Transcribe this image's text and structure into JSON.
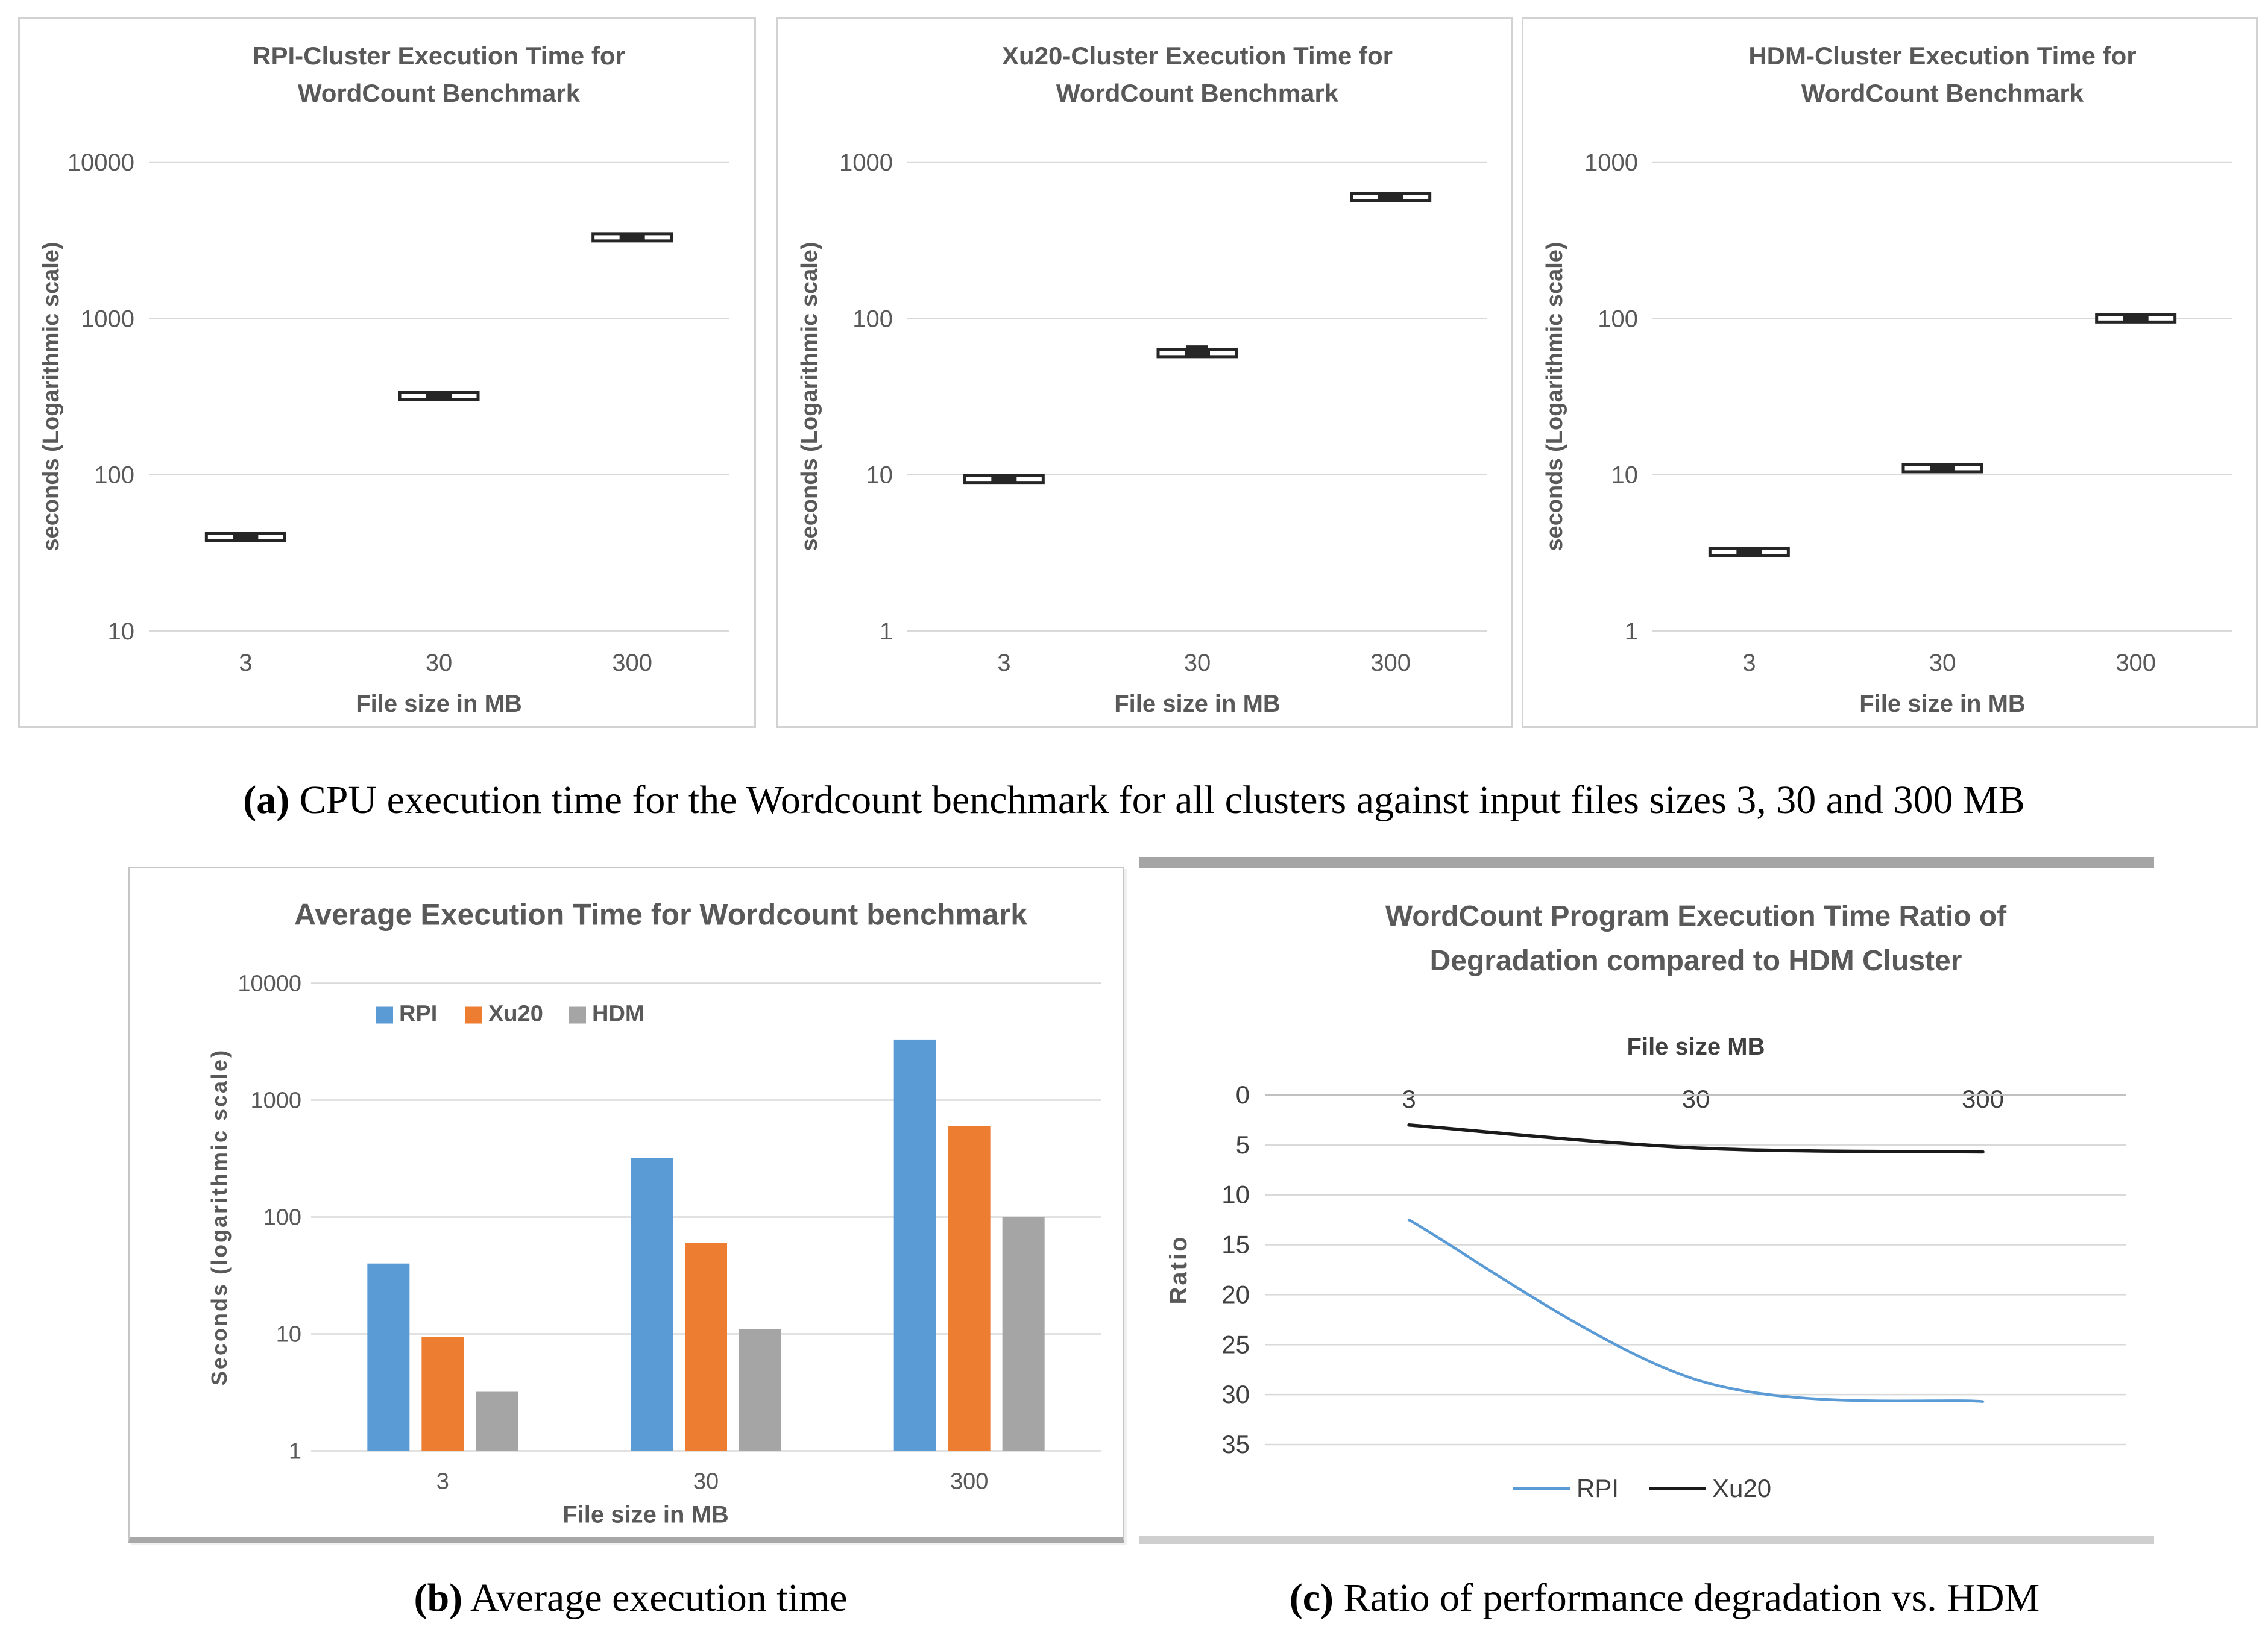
{
  "page": {
    "background": "#ffffff"
  },
  "captions": {
    "a": {
      "label": "(a)",
      "text": "CPU execution time for the Wordcount benchmark for all clusters against input files sizes 3, 30 and 300 MB"
    },
    "b": {
      "label": "(b)",
      "text": "Average execution time"
    },
    "c": {
      "label": "(c)",
      "text": "Ratio of performance degradation vs. HDM"
    }
  },
  "palette": {
    "rpi_blue": "#5B9BD5",
    "xu20_orange": "#ED7D31",
    "hdm_gray": "#A5A5A5",
    "line_black": "#1a1a1a",
    "grid": "#D9D9D9",
    "axis_text": "#595959",
    "dark_text": "#404040",
    "marker": "#262626"
  },
  "chart_data": [
    {
      "id": "rpi-exec-time",
      "type": "scatter",
      "title_lines": [
        "RPI-Cluster Execution Time for",
        "WordCount Benchmark"
      ],
      "ylabel": "seconds (Logarithmic scale)",
      "xlabel": "File size in MB",
      "categories": [
        "3",
        "30",
        "300"
      ],
      "values": [
        40,
        320,
        3300
      ],
      "whisker_high": [
        null,
        null,
        null
      ],
      "y_scale": "log",
      "ylim": [
        10,
        10000
      ],
      "y_ticks": [
        10000,
        1000,
        100,
        10
      ],
      "marker_style": "box-whisker",
      "grid": true
    },
    {
      "id": "xu20-exec-time",
      "type": "scatter",
      "title_lines": [
        "Xu20-Cluster Execution Time for",
        "WordCount Benchmark"
      ],
      "ylabel": "seconds (Logarithmic scale)",
      "xlabel": "File size in MB",
      "categories": [
        "3",
        "30",
        "300"
      ],
      "values": [
        9.4,
        60,
        600
      ],
      "whisker_high": [
        null,
        66,
        null
      ],
      "y_scale": "log",
      "ylim": [
        1,
        1000
      ],
      "y_ticks": [
        1000,
        100,
        10,
        1
      ],
      "marker_style": "box-whisker",
      "grid": true
    },
    {
      "id": "hdm-exec-time",
      "type": "scatter",
      "title_lines": [
        "HDM-Cluster Execution Time for",
        "WordCount Benchmark"
      ],
      "ylabel": "seconds (Logarithmic scale)",
      "xlabel": "File size in MB",
      "categories": [
        "3",
        "30",
        "300"
      ],
      "values": [
        3.2,
        11,
        100
      ],
      "whisker_high": [
        null,
        null,
        null
      ],
      "y_scale": "log",
      "ylim": [
        1,
        1000
      ],
      "y_ticks": [
        1000,
        100,
        10,
        1
      ],
      "marker_style": "box-whisker",
      "grid": true
    },
    {
      "id": "average-exec-time",
      "type": "bar",
      "title": "Average Execution Time for Wordcount benchmark",
      "ylabel": "Seconds (logarithmic scale)",
      "xlabel": "File size in MB",
      "categories": [
        "3",
        "30",
        "300"
      ],
      "series": [
        {
          "name": "RPI",
          "color": "#5B9BD5",
          "values": [
            40,
            320,
            3300
          ]
        },
        {
          "name": "Xu20",
          "color": "#ED7D31",
          "values": [
            9.4,
            60,
            600
          ]
        },
        {
          "name": "HDM",
          "color": "#A5A5A5",
          "values": [
            3.2,
            11,
            100
          ]
        }
      ],
      "y_scale": "log",
      "ylim": [
        1,
        10000
      ],
      "y_ticks": [
        10000,
        1000,
        100,
        10,
        1
      ],
      "legend_position": "top-left",
      "grid": true
    },
    {
      "id": "degradation-ratio",
      "type": "line",
      "title_lines": [
        "WordCount Program Execution Time Ratio of",
        "Degradation compared to HDM Cluster"
      ],
      "xlabel_top": "File size MB",
      "ylabel": "Ratio",
      "categories": [
        "3",
        "30",
        "300"
      ],
      "series": [
        {
          "name": "RPI",
          "color": "#5B9BD5",
          "values": [
            12.5,
            28.5,
            30.7
          ]
        },
        {
          "name": "Xu20",
          "color": "#1a1a1a",
          "values": [
            3,
            5.3,
            5.7
          ]
        }
      ],
      "y_inverted": true,
      "ylim": [
        0,
        35
      ],
      "y_ticks": [
        0,
        5,
        10,
        15,
        20,
        25,
        30,
        35
      ],
      "legend_position": "bottom",
      "grid": true
    }
  ]
}
